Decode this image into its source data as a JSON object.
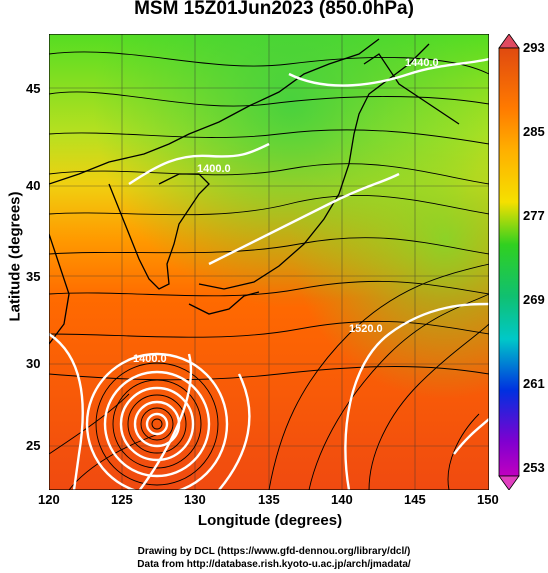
{
  "title": "MSM 15Z01Jun2023 (850.0hPa)",
  "x_axis": {
    "label": "Longitude (degrees)",
    "ticks": [
      "120",
      "125",
      "130",
      "135",
      "140",
      "145",
      "150"
    ]
  },
  "y_axis": {
    "label": "Latitude  (degrees)",
    "ticks": [
      "45",
      "40",
      "35",
      "30",
      "25"
    ]
  },
  "colorbar": {
    "labels": [
      "293",
      "285",
      "277",
      "269",
      "261",
      "253"
    ],
    "colors": [
      "#e04a10",
      "#ff8a00",
      "#f5e000",
      "#30d020",
      "#00c8c8",
      "#0030e0",
      "#c000c0"
    ]
  },
  "contour_labels": [
    "1400.0",
    "1400.0",
    "1440.0",
    "1520.0"
  ],
  "credits": {
    "line1": "Drawing by DCL (https://www.gfd-dennou.org/library/dcl/)",
    "line2": "Data from http://database.rish.kyoto-u.ac.jp/arch/jmadata/"
  }
}
